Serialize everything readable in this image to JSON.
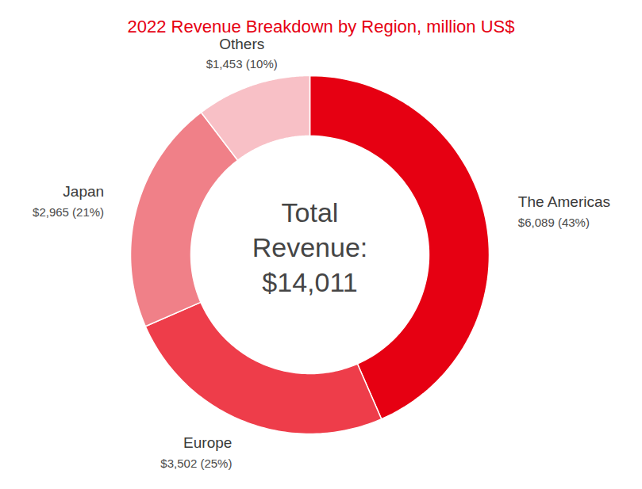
{
  "chart_data": {
    "type": "pie",
    "title": "2022 Revenue Breakdown by Region, million US$",
    "categories": [
      "The Americas",
      "Europe",
      "Japan",
      "Others"
    ],
    "values": [
      6089,
      3502,
      2965,
      1453
    ],
    "value_labels": [
      "$6,089 (43%)",
      "$3,502 (25%)",
      "$2,965 (21%)",
      "$1,453 (10%)"
    ],
    "colors": [
      "#e60012",
      "#ee3d4a",
      "#f08088",
      "#f8c0c6"
    ],
    "data_labels": true,
    "center_text": [
      "Total",
      "Revenue:",
      "$14,011"
    ]
  }
}
